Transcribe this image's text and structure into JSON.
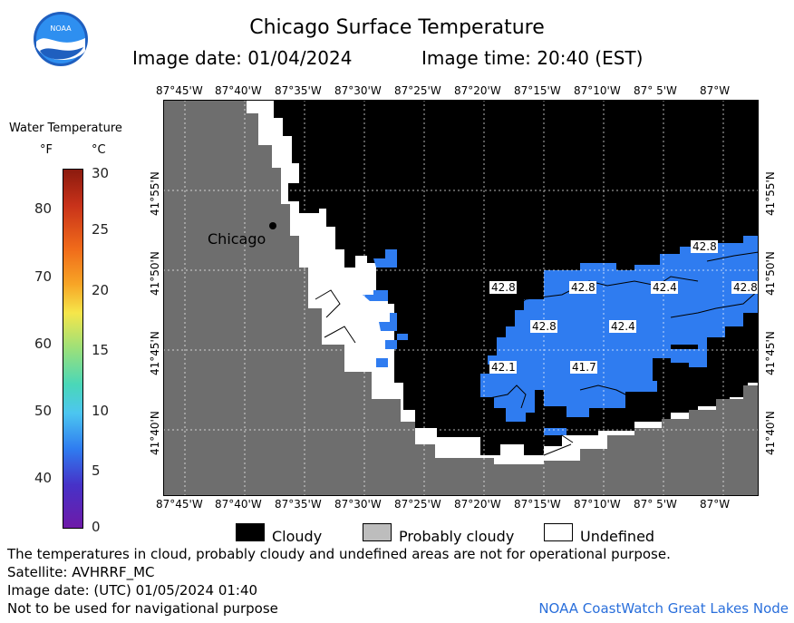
{
  "header": {
    "title": "Chicago Surface Temperature",
    "image_date": "Image date: 01/04/2024",
    "image_time": "Image time: 20:40 (EST)"
  },
  "logo": {
    "text": "NOAA",
    "icon": "noaa-logo-icon"
  },
  "map": {
    "lon_labels_top": [
      "87°45'W",
      "87°40'W",
      "87°35'W",
      "87°30'W",
      "87°25'W",
      "87°20'W",
      "87°15'W",
      "87°10'W",
      "87° 5'W",
      "87°W"
    ],
    "lon_labels_bottom": [
      "87°45'W",
      "87°40'W",
      "87°35'W",
      "87°30'W",
      "87°25'W",
      "87°20'W",
      "87°15'W",
      "87°10'W",
      "87° 5'W",
      "87°W"
    ],
    "lat_labels_left": [
      "41°55'N",
      "41°50'N",
      "41°45'N",
      "41°40'N"
    ],
    "lat_labels_right": [
      "41°55'N",
      "41°50'N",
      "41°45'N",
      "41°40'N"
    ],
    "city_label": "Chicago",
    "temperature_labels": [
      "42.8",
      "42.8",
      "42.8",
      "42.4",
      "42.8",
      "42.8",
      "42.4",
      "42.1",
      "41.7"
    ],
    "colors": {
      "land": "#6e6e6e",
      "cloudy": "#000000",
      "undefined": "#ffffff",
      "water_warm": "#2f7cf0"
    }
  },
  "legend": {
    "title": "Water Temperature",
    "unit_f": "°F",
    "unit_c": "°C",
    "f_ticks": [
      "80",
      "70",
      "60",
      "50",
      "40"
    ],
    "c_ticks": [
      "30",
      "25",
      "20",
      "15",
      "10",
      "5",
      "0"
    ]
  },
  "key": {
    "cloudy": "Cloudy",
    "probably_cloudy": "Probably cloudy",
    "undefined": "Undefined"
  },
  "footer": {
    "disclaimer": "The temperatures in cloud, probably cloudy and undefined areas are not for operational purpose.",
    "satellite": "Satellite: AVHRRF_MC",
    "utc_date": "Image date: (UTC) 01/05/2024  01:40",
    "navigation": "Not to be used for navigational purpose",
    "credit": "NOAA CoastWatch Great Lakes Node"
  }
}
